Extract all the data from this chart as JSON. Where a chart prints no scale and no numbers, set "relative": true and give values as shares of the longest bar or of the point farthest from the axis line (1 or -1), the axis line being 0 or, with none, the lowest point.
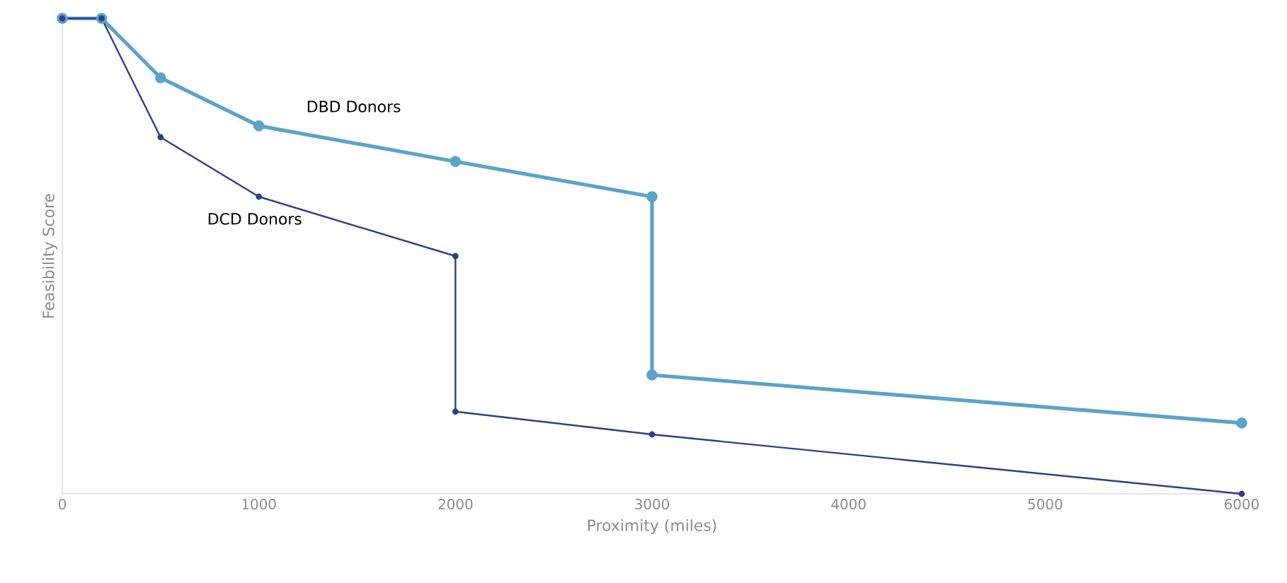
{
  "chart_data": {
    "type": "line",
    "relative": true,
    "xlabel": "Proximity (miles)",
    "ylabel": "Feasibility Score",
    "xlim": [
      0,
      6000
    ],
    "xticks": [
      0,
      1000,
      2000,
      3000,
      4000,
      5000,
      6000
    ],
    "marker": "circle",
    "line_style": "solid",
    "grid": false,
    "legend": false,
    "series": [
      {
        "name": "DBD Donors",
        "color": "#5ba3c9",
        "x": [
          0,
          200,
          500,
          1000,
          2000,
          3000,
          3000,
          6000
        ],
        "values": [
          1,
          1,
          0.875,
          0.774,
          0.699,
          0.625,
          0.25,
          0.149
        ]
      },
      {
        "name": "DCD Donors",
        "color": "#2e3f8a",
        "x": [
          0,
          200,
          500,
          1000,
          2000,
          2000,
          3000,
          6000
        ],
        "values": [
          1,
          1,
          0.75,
          0.625,
          0.5,
          0.173,
          0.125,
          0
        ]
      }
    ]
  }
}
